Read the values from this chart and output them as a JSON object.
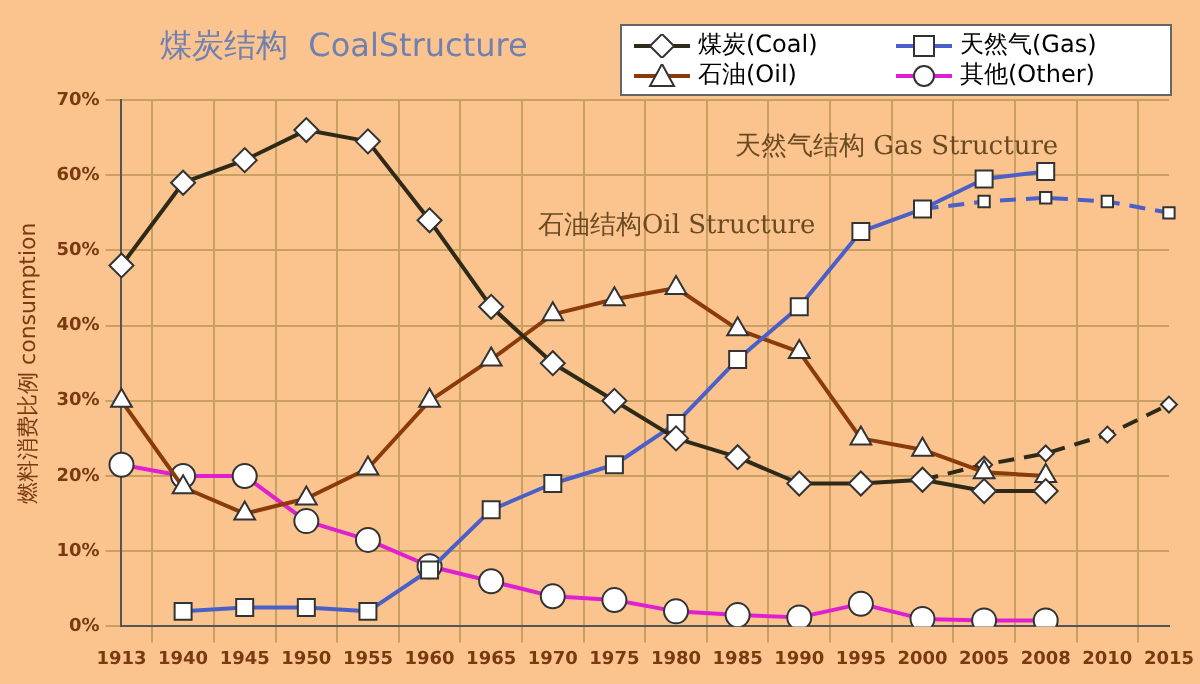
{
  "chart_data": {
    "type": "line",
    "title": "煤炭结构  CoalStructure",
    "ylabel": "燃料消费比例 consumption",
    "categories": [
      "1913",
      "1940",
      "1945",
      "1950",
      "1955",
      "1960",
      "1965",
      "1970",
      "1975",
      "1980",
      "1985",
      "1990",
      "1995",
      "2000",
      "2005",
      "2008",
      "2010",
      "2015"
    ],
    "series": [
      {
        "name": "煤炭(Coal)",
        "color": "#2e2a17",
        "marker": "diamond",
        "line_style": "solid",
        "values": [
          48,
          59,
          62,
          66,
          64.5,
          54,
          42.5,
          35,
          30,
          25,
          22.5,
          19,
          19,
          19.5,
          18,
          18,
          null,
          null
        ]
      },
      {
        "name": "天然气(Gas)",
        "color": "#4a5fc8",
        "marker": "square",
        "line_style": "solid",
        "values": [
          null,
          2,
          2.5,
          2.5,
          2,
          7.5,
          15.5,
          19,
          21.5,
          27,
          35.5,
          42.5,
          52.5,
          55.5,
          59.5,
          60.5,
          null,
          null
        ]
      },
      {
        "name": "石油(Oil)",
        "color": "#8b3a0a",
        "marker": "triangle",
        "line_style": "solid",
        "values": [
          30,
          18.5,
          15,
          17,
          21,
          30,
          35.5,
          41.5,
          43.5,
          45,
          39.5,
          36.5,
          25,
          23.5,
          20.5,
          20,
          null,
          null
        ]
      },
      {
        "name": "其他(Other)",
        "color": "#e020d0",
        "marker": "circle",
        "line_style": "solid",
        "values": [
          21.5,
          20,
          20,
          14,
          11.5,
          8,
          6,
          4,
          3.5,
          2,
          1.5,
          1.2,
          3,
          1,
          0.8,
          0.8,
          null,
          null
        ]
      },
      {
        "color": "#2e2a17",
        "marker": "diamond",
        "line_style": "dashed",
        "values": [
          null,
          null,
          null,
          null,
          null,
          null,
          null,
          null,
          null,
          null,
          null,
          null,
          null,
          19.5,
          21.5,
          23,
          25.5,
          29.5
        ]
      },
      {
        "color": "#4a5fc8",
        "marker": "square",
        "line_style": "dashed",
        "values": [
          null,
          null,
          null,
          null,
          null,
          null,
          null,
          null,
          null,
          null,
          null,
          null,
          null,
          55.5,
          56.5,
          57,
          56.5,
          55
        ]
      }
    ],
    "ylim": [
      0,
      70
    ],
    "yticks": [
      {
        "value": 0,
        "label": "0%"
      },
      {
        "value": 10,
        "label": "10%"
      },
      {
        "value": 20,
        "label": "20%"
      },
      {
        "value": 30,
        "label": "30%"
      },
      {
        "value": 40,
        "label": "40%"
      },
      {
        "value": 50,
        "label": "50%"
      },
      {
        "value": 60,
        "label": "60%"
      },
      {
        "value": 70,
        "label": "70%"
      }
    ],
    "grid": true,
    "legend": "top right",
    "annotations": [
      "天然气结构 Gas Structure",
      "石油结构Oil Structure"
    ]
  }
}
